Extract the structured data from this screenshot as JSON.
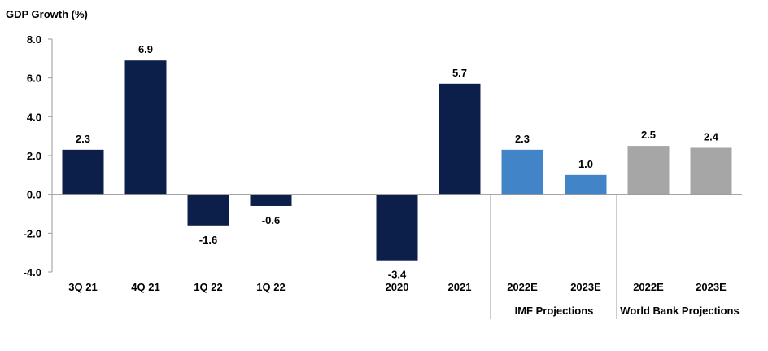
{
  "chart_data": {
    "type": "bar",
    "ylabel": "GDP Growth (%)",
    "ylim": [
      -4.0,
      8.0
    ],
    "yticks": [
      8.0,
      6.0,
      4.0,
      2.0,
      0.0,
      -2.0,
      -4.0
    ],
    "grid": false,
    "categories": [
      "3Q 21",
      "4Q 21",
      "1Q 22",
      "1Q 22",
      "",
      "2020",
      "2021",
      "2022E",
      "2023E",
      "2022E",
      "2023E"
    ],
    "values": [
      2.3,
      6.9,
      -1.6,
      -0.6,
      null,
      -3.4,
      5.7,
      2.3,
      1.0,
      2.5,
      2.4
    ],
    "value_labels": [
      "2.3",
      "6.9",
      "-1.6",
      "-0.6",
      "",
      "-3.4",
      "5.7",
      "2.3",
      "1.0",
      "2.5",
      "2.4"
    ],
    "bar_groups": [
      "actual",
      "actual",
      "actual",
      "actual",
      "",
      "actual",
      "actual",
      "imf",
      "imf",
      "wb",
      "wb"
    ],
    "colors": {
      "actual": "#0c1f4a",
      "imf": "#4284c8",
      "wb": "#a6a6a6",
      "axis": "#9a9a9a"
    },
    "group_labels": [
      {
        "label": "IMF Projections",
        "from": 7,
        "to": 8
      },
      {
        "label": "World Bank Projections",
        "from": 9,
        "to": 10
      }
    ]
  }
}
